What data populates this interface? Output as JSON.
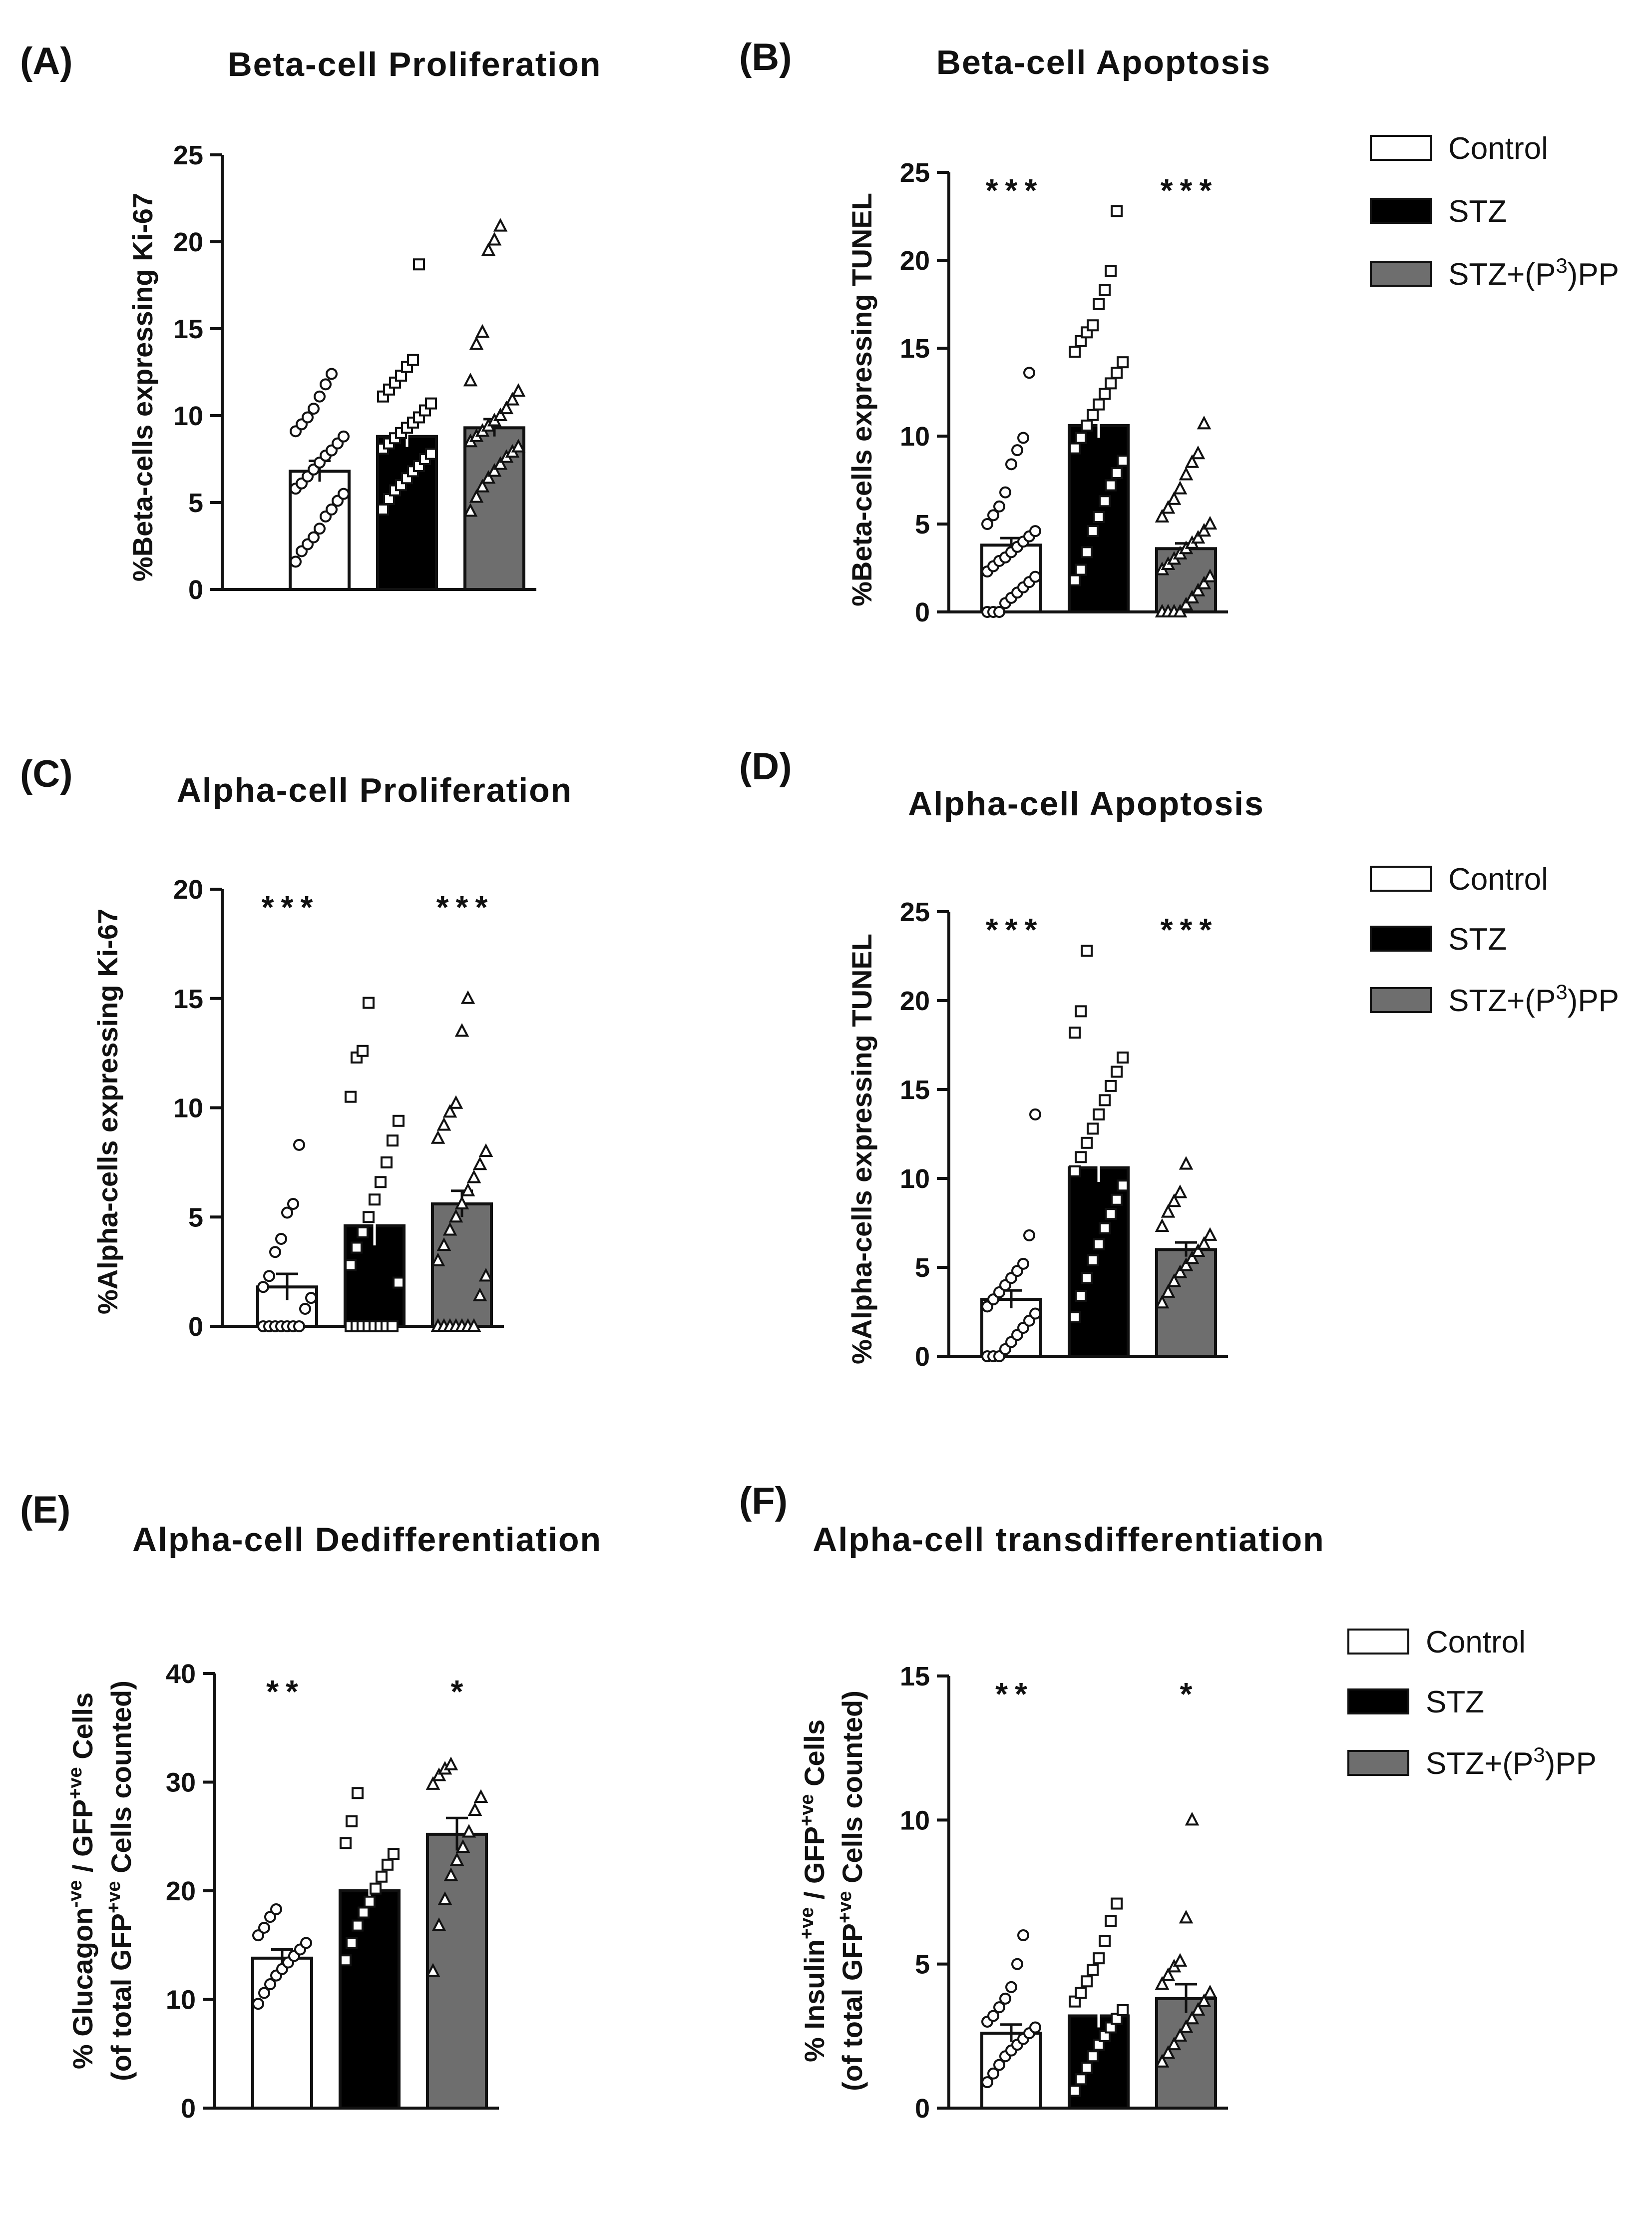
{
  "colors": {
    "Control": "#ffffff",
    "STZ": "#000000",
    "STZ+(P3)PP": "#6e6e6e"
  },
  "chart_data": [
    {
      "panel": "(A)",
      "title": "Beta-cell  Proliferation",
      "type": "bar",
      "ylabel": "%Beta-cells expressing Ki-67",
      "ylim": [
        0,
        25
      ],
      "yticks": [
        0,
        5,
        10,
        15,
        20,
        25
      ],
      "categories": [
        "Control",
        "STZ",
        "STZ+(P3)PP"
      ],
      "values": [
        6.8,
        8.8,
        9.3
      ],
      "sem": [
        0.6,
        0.6,
        0.5
      ],
      "significance": [
        "",
        "",
        ""
      ],
      "points": [
        [
          1.6,
          2.2,
          2.6,
          3.0,
          3.5,
          4.2,
          4.6,
          5.1,
          5.5,
          5.8,
          6.1,
          6.5,
          6.9,
          7.3,
          7.7,
          8.0,
          8.4,
          8.8,
          9.1,
          9.5,
          9.9,
          10.4,
          11.1,
          11.8,
          12.4
        ],
        [
          4.6,
          5.2,
          5.7,
          6.0,
          6.4,
          6.8,
          7.1,
          7.5,
          7.8,
          8.1,
          8.4,
          8.7,
          9.0,
          9.3,
          9.6,
          9.9,
          10.3,
          10.7,
          11.1,
          11.5,
          11.9,
          12.3,
          12.8,
          13.2,
          18.7
        ],
        [
          4.5,
          5.3,
          5.9,
          6.4,
          6.8,
          7.2,
          7.6,
          7.9,
          8.2,
          8.5,
          8.8,
          9.1,
          9.4,
          9.7,
          10.0,
          10.4,
          10.9,
          11.4,
          12.0,
          14.1,
          14.8,
          19.5,
          20.1,
          20.9
        ]
      ],
      "markers": [
        "circle",
        "square",
        "triangle"
      ]
    },
    {
      "panel": "(B)",
      "title": "Beta-cell  Apoptosis",
      "type": "bar",
      "ylabel": "%Beta-cells expressing TUNEL",
      "ylim": [
        0,
        25
      ],
      "yticks": [
        0,
        5,
        10,
        15,
        20,
        25
      ],
      "categories": [
        "Control",
        "STZ",
        "STZ+(P3)PP"
      ],
      "values": [
        3.8,
        10.6,
        3.6
      ],
      "sem": [
        0.4,
        0.7,
        0.3
      ],
      "significance": [
        "***",
        "",
        "***"
      ],
      "points": [
        [
          0,
          0,
          0,
          0.5,
          0.8,
          1.1,
          1.4,
          1.7,
          2.0,
          2.3,
          2.6,
          2.9,
          3.1,
          3.4,
          3.7,
          4.0,
          4.3,
          4.6,
          5.0,
          5.5,
          6.0,
          6.8,
          8.4,
          9.2,
          9.9,
          13.6
        ],
        [
          1.8,
          2.4,
          3.4,
          4.6,
          5.4,
          6.3,
          7.2,
          7.9,
          8.6,
          9.3,
          9.9,
          10.6,
          11.2,
          11.8,
          12.4,
          13.0,
          13.6,
          14.2,
          14.8,
          15.4,
          15.9,
          16.3,
          17.5,
          18.3,
          19.4,
          22.8
        ],
        [
          0,
          0,
          0,
          0,
          0.4,
          0.8,
          1.2,
          1.6,
          2.0,
          2.4,
          2.7,
          3.0,
          3.3,
          3.6,
          3.9,
          4.2,
          4.6,
          5.0,
          5.4,
          5.9,
          6.4,
          7.0,
          7.8,
          8.5,
          9.0,
          10.7
        ]
      ],
      "markers": [
        "circle",
        "square",
        "triangle"
      ]
    },
    {
      "panel": "(C)",
      "title": "Alpha-cell Proliferation",
      "type": "bar",
      "ylabel": "%Alpha-cells expressing Ki-67",
      "ylim": [
        0,
        20
      ],
      "yticks": [
        0,
        5,
        10,
        15,
        20
      ],
      "categories": [
        "Control",
        "STZ",
        "STZ+(P3)PP"
      ],
      "values": [
        1.8,
        4.6,
        5.6
      ],
      "sem": [
        0.6,
        0.9,
        0.6
      ],
      "significance": [
        "***",
        "",
        "***"
      ],
      "points": [
        [
          0,
          0,
          0,
          0,
          0,
          0,
          0,
          0.8,
          1.3,
          1.8,
          2.3,
          3.4,
          4.0,
          5.2,
          5.6,
          8.3
        ],
        [
          0,
          0,
          0,
          0,
          0,
          0,
          0,
          0,
          2.0,
          2.8,
          3.6,
          4.3,
          5.0,
          5.8,
          6.6,
          7.5,
          8.5,
          9.4,
          10.5,
          12.3,
          12.6,
          14.8
        ],
        [
          0,
          0,
          0,
          0,
          0,
          0,
          0,
          1.4,
          2.3,
          3.0,
          3.7,
          4.4,
          5.0,
          5.6,
          6.2,
          6.8,
          7.4,
          8.0,
          8.6,
          9.2,
          9.8,
          10.2,
          13.5,
          15.0
        ]
      ],
      "markers": [
        "circle",
        "square",
        "triangle"
      ]
    },
    {
      "panel": "(D)",
      "title": "Alpha-cell Apoptosis",
      "type": "bar",
      "ylabel": "%Alpha-cells expressing TUNEL",
      "ylim": [
        0,
        25
      ],
      "yticks": [
        0,
        5,
        10,
        15,
        20,
        25
      ],
      "categories": [
        "Control",
        "STZ",
        "STZ+(P3)PP"
      ],
      "values": [
        3.2,
        10.6,
        6.0
      ],
      "sem": [
        0.5,
        0.8,
        0.4
      ],
      "significance": [
        "***",
        "",
        "***"
      ],
      "points": [
        [
          0,
          0,
          0,
          0.4,
          0.8,
          1.2,
          1.6,
          2.0,
          2.4,
          2.8,
          3.2,
          3.6,
          4.0,
          4.4,
          4.8,
          5.2,
          6.8,
          13.6
        ],
        [
          2.2,
          3.4,
          4.4,
          5.4,
          6.3,
          7.2,
          8.0,
          8.8,
          9.6,
          10.4,
          11.2,
          12.0,
          12.8,
          13.6,
          14.4,
          15.2,
          16.0,
          16.8,
          18.2,
          19.4,
          22.8
        ],
        [
          3.0,
          3.6,
          4.2,
          4.7,
          5.1,
          5.5,
          5.9,
          6.3,
          6.8,
          7.3,
          8.1,
          8.7,
          9.2,
          10.8
        ]
      ],
      "markers": [
        "circle",
        "square",
        "triangle"
      ]
    },
    {
      "panel": "(E)",
      "title": "Alpha-cell Dedifferentiation",
      "type": "bar",
      "ylabel": "% Glucagon-ve / GFP+ve Cells",
      "ylabel2": "(of total GFP+ve Cells counted)",
      "ylim": [
        0,
        40
      ],
      "yticks": [
        0,
        10,
        20,
        30,
        40
      ],
      "categories": [
        "Control",
        "STZ",
        "STZ+(P3)PP"
      ],
      "values": [
        13.8,
        20.0,
        25.2
      ],
      "sem": [
        0.8,
        1.1,
        1.5
      ],
      "significance": [
        "**",
        "",
        "*"
      ],
      "points": [
        [
          9.6,
          10.6,
          11.4,
          12.2,
          12.8,
          13.4,
          14.0,
          14.6,
          15.2,
          15.9,
          16.6,
          17.6,
          18.3
        ],
        [
          13.6,
          15.2,
          16.8,
          18.0,
          19.0,
          20.2,
          21.3,
          22.4,
          23.4,
          24.4,
          26.4,
          29.0
        ],
        [
          12.6,
          16.8,
          19.2,
          21.4,
          22.8,
          24.0,
          25.4,
          27.4,
          28.6,
          29.8,
          30.6,
          31.2,
          31.6
        ]
      ],
      "markers": [
        "circle",
        "square",
        "triangle"
      ]
    },
    {
      "panel": "(F)",
      "title": "Alpha-cell transdifferentiation",
      "type": "bar",
      "ylabel": "% Insulin+ve / GFP+ve Cells",
      "ylabel2": "(of total GFP+ve Cells counted)",
      "ylim": [
        0,
        15
      ],
      "yticks": [
        0,
        5,
        10,
        15
      ],
      "categories": [
        "Control",
        "STZ",
        "STZ+(P3)PP"
      ],
      "values": [
        2.6,
        3.2,
        3.8
      ],
      "sem": [
        0.3,
        0.4,
        0.5
      ],
      "significance": [
        "**",
        "",
        "*"
      ],
      "points": [
        [
          0.9,
          1.2,
          1.5,
          1.8,
          2.0,
          2.2,
          2.4,
          2.6,
          2.8,
          3.0,
          3.2,
          3.5,
          3.8,
          4.2,
          5.0,
          6.0
        ],
        [
          0.6,
          1.0,
          1.4,
          1.8,
          2.2,
          2.5,
          2.8,
          3.1,
          3.4,
          3.7,
          4.0,
          4.4,
          4.8,
          5.2,
          5.8,
          6.5,
          7.1
        ],
        [
          1.6,
          1.9,
          2.2,
          2.5,
          2.8,
          3.1,
          3.4,
          3.7,
          4.0,
          4.3,
          4.6,
          4.9,
          5.1,
          6.6,
          10.0
        ]
      ],
      "markers": [
        "circle",
        "square",
        "triangle"
      ]
    }
  ],
  "legends": [
    {
      "control": "Control",
      "stz": "STZ",
      "p3pp_prefix": "STZ+(P",
      "p3pp_sup": "3",
      "p3pp_suffix": ")PP"
    },
    {
      "control": "Control",
      "stz": "STZ",
      "p3pp_prefix": "STZ+(P",
      "p3pp_sup": "3",
      "p3pp_suffix": ")PP"
    },
    {
      "control": "Control",
      "stz": "STZ",
      "p3pp_prefix": "STZ+(P",
      "p3pp_sup": "3",
      "p3pp_suffix": ")PP"
    }
  ],
  "axis_titles": {
    "e_line1_prefix": "% Glucagon",
    "e_line1_sup1": "-ve",
    "e_line1_mid": " / GFP",
    "e_line1_sup2": "+ve",
    "e_line1_suffix": " Cells",
    "e_line2_prefix": "(of total GFP",
    "e_line2_sup": "+ve",
    "e_line2_suffix": " Cells counted)",
    "f_line1_prefix": "% Insulin",
    "f_line1_sup1": "+ve",
    "f_line1_mid": " / GFP",
    "f_line1_sup2": "+ve",
    "f_line1_suffix": " Cells",
    "f_line2_prefix": "(of total GFP",
    "f_line2_sup": "+ve",
    "f_line2_suffix": " Cells counted)"
  }
}
